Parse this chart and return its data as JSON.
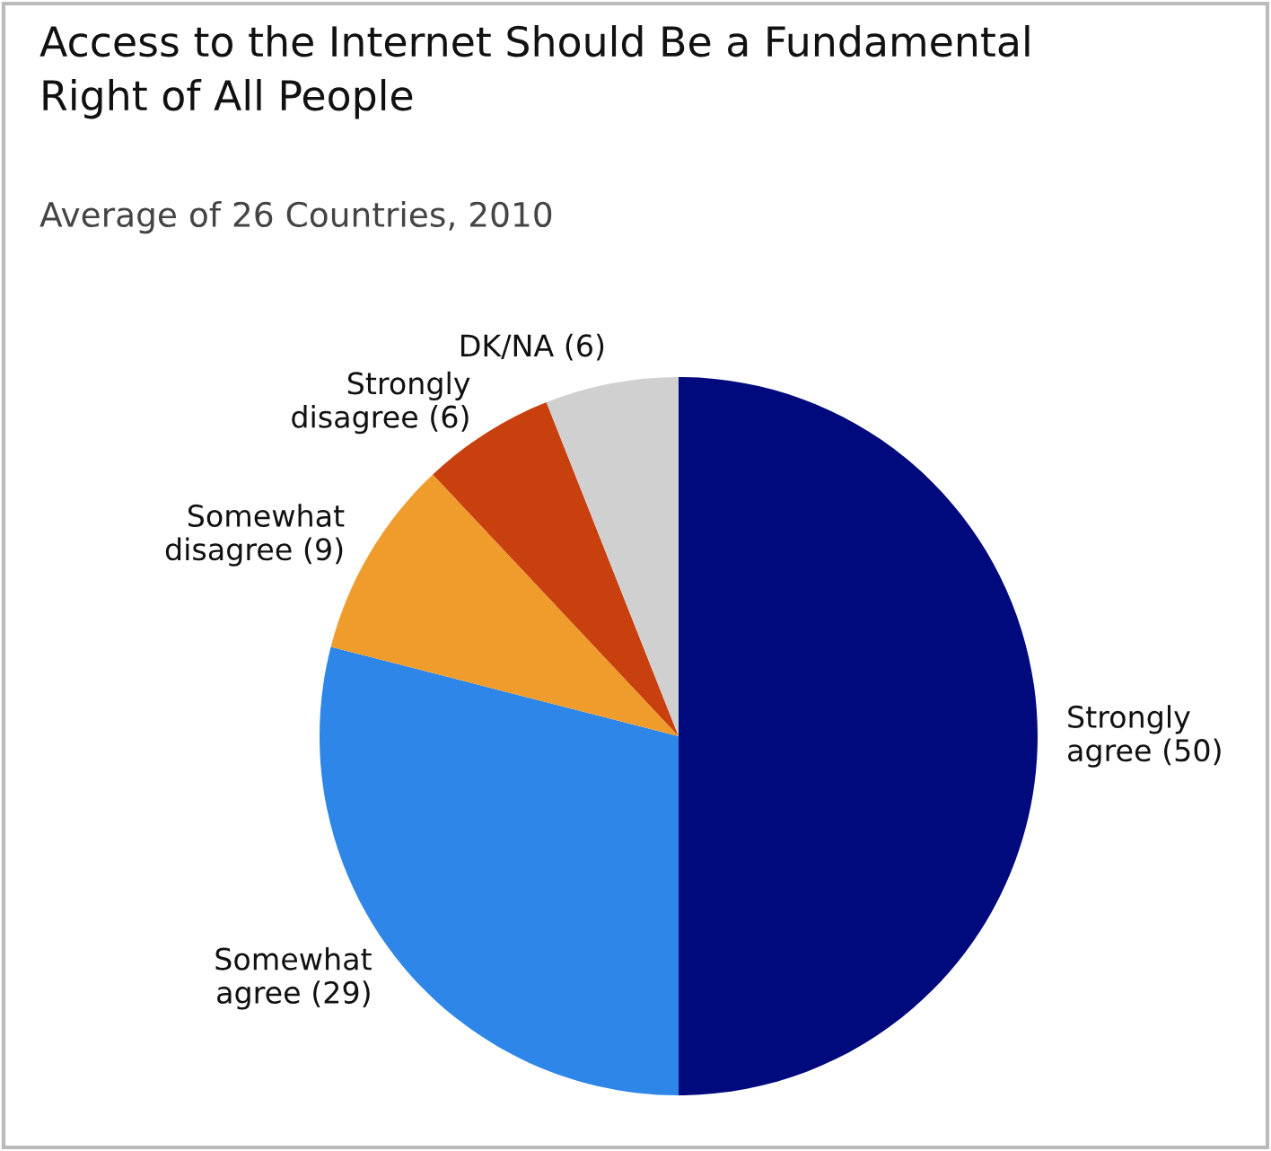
{
  "chart_data": {
    "type": "pie",
    "title": "Access to the Internet Should Be a Fundamental\nRight of All People",
    "subtitle": "Average of 26 Countries, 2010",
    "categories": [
      "Strongly\nagree (50)",
      "Somewhat\nagree (29)",
      "Somewhat\ndisagree (9)",
      "Strongly\ndisagree (6)",
      "DK/NA (6)"
    ],
    "values": [
      50,
      29,
      9,
      6,
      6
    ],
    "colors": [
      "#000a7c",
      "#2e86e8",
      "#f09c2c",
      "#c8400e",
      "#d0d0d0"
    ]
  }
}
